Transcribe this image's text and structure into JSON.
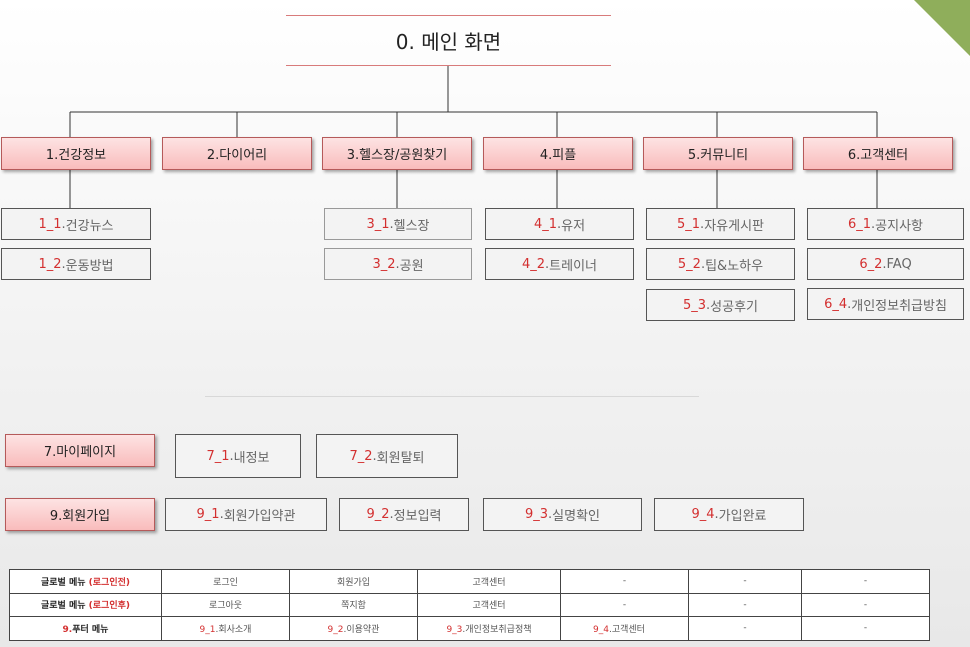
{
  "title": "0. 메인 화면",
  "colors": {
    "category_fill": "#f9bcbc",
    "category_border": "#b55a5a",
    "accent_red": "#d32f2f",
    "corner": "#8fae5b"
  },
  "categories": [
    {
      "label": "1.건강정보",
      "children": [
        {
          "num": "1_1",
          "text": "건강뉴스"
        },
        {
          "num": "1_2",
          "text": "운동방법"
        }
      ]
    },
    {
      "label": "2.다이어리",
      "children": []
    },
    {
      "label": "3.헬스장/공원찾기",
      "children": [
        {
          "num": "3_1",
          "text": "헬스장"
        },
        {
          "num": "3_2",
          "text": "공원"
        }
      ]
    },
    {
      "label": "4.피플",
      "children": [
        {
          "num": "4_1",
          "text": "유저"
        },
        {
          "num": "4_2",
          "text": "트레이너"
        }
      ]
    },
    {
      "label": "5.커뮤니티",
      "children": [
        {
          "num": "5_1",
          "text": "자유게시판"
        },
        {
          "num": "5_2",
          "text": "팁&노하우"
        },
        {
          "num": "5_3",
          "text": "성공후기"
        }
      ]
    },
    {
      "label": "6.고객센터",
      "children": [
        {
          "num": "6_1",
          "text": "공지사항"
        },
        {
          "num": "6_2",
          "text": "FAQ"
        },
        {
          "num": "6_4",
          "text": "개인정보취급방침"
        }
      ]
    }
  ],
  "mypage": {
    "label": "7.마이페이지",
    "children": [
      {
        "num": "7_1",
        "text": "내정보"
      },
      {
        "num": "7_2",
        "text": "회원탈퇴"
      }
    ]
  },
  "signup": {
    "label": "9.회원가입",
    "children": [
      {
        "num": "9_1",
        "text": "회원가입약관"
      },
      {
        "num": "9_2",
        "text": "정보입력"
      },
      {
        "num": "9_3",
        "text": "실명확인"
      },
      {
        "num": "9_4",
        "text": "가입완료"
      }
    ]
  },
  "menu_table": {
    "rows": [
      {
        "head": "글로벌 메뉴 ",
        "head_red": "(로그인전)",
        "cells": [
          {
            "text": "로그인"
          },
          {
            "text": "회원가입"
          },
          {
            "text": "고객센터"
          },
          {
            "text": "-"
          },
          {
            "text": "-"
          },
          {
            "text": "-"
          }
        ]
      },
      {
        "head": "글로벌 메뉴 ",
        "head_red": "(로그인후)",
        "cells": [
          {
            "text": "로그아웃"
          },
          {
            "text": "쪽지함"
          },
          {
            "text": "고객센터"
          },
          {
            "text": "-"
          },
          {
            "text": "-"
          },
          {
            "text": "-"
          }
        ]
      },
      {
        "head_red": "9.",
        "head": "푸터 메뉴",
        "cells": [
          {
            "num": "9_1",
            "text": "회사소개"
          },
          {
            "num": "9_2",
            "text": "이용약관"
          },
          {
            "num": "9_3",
            "text": "개인정보취급정책"
          },
          {
            "num": "9_4",
            "text": "고객센터"
          },
          {
            "text": "-"
          },
          {
            "text": "-"
          }
        ]
      }
    ]
  }
}
